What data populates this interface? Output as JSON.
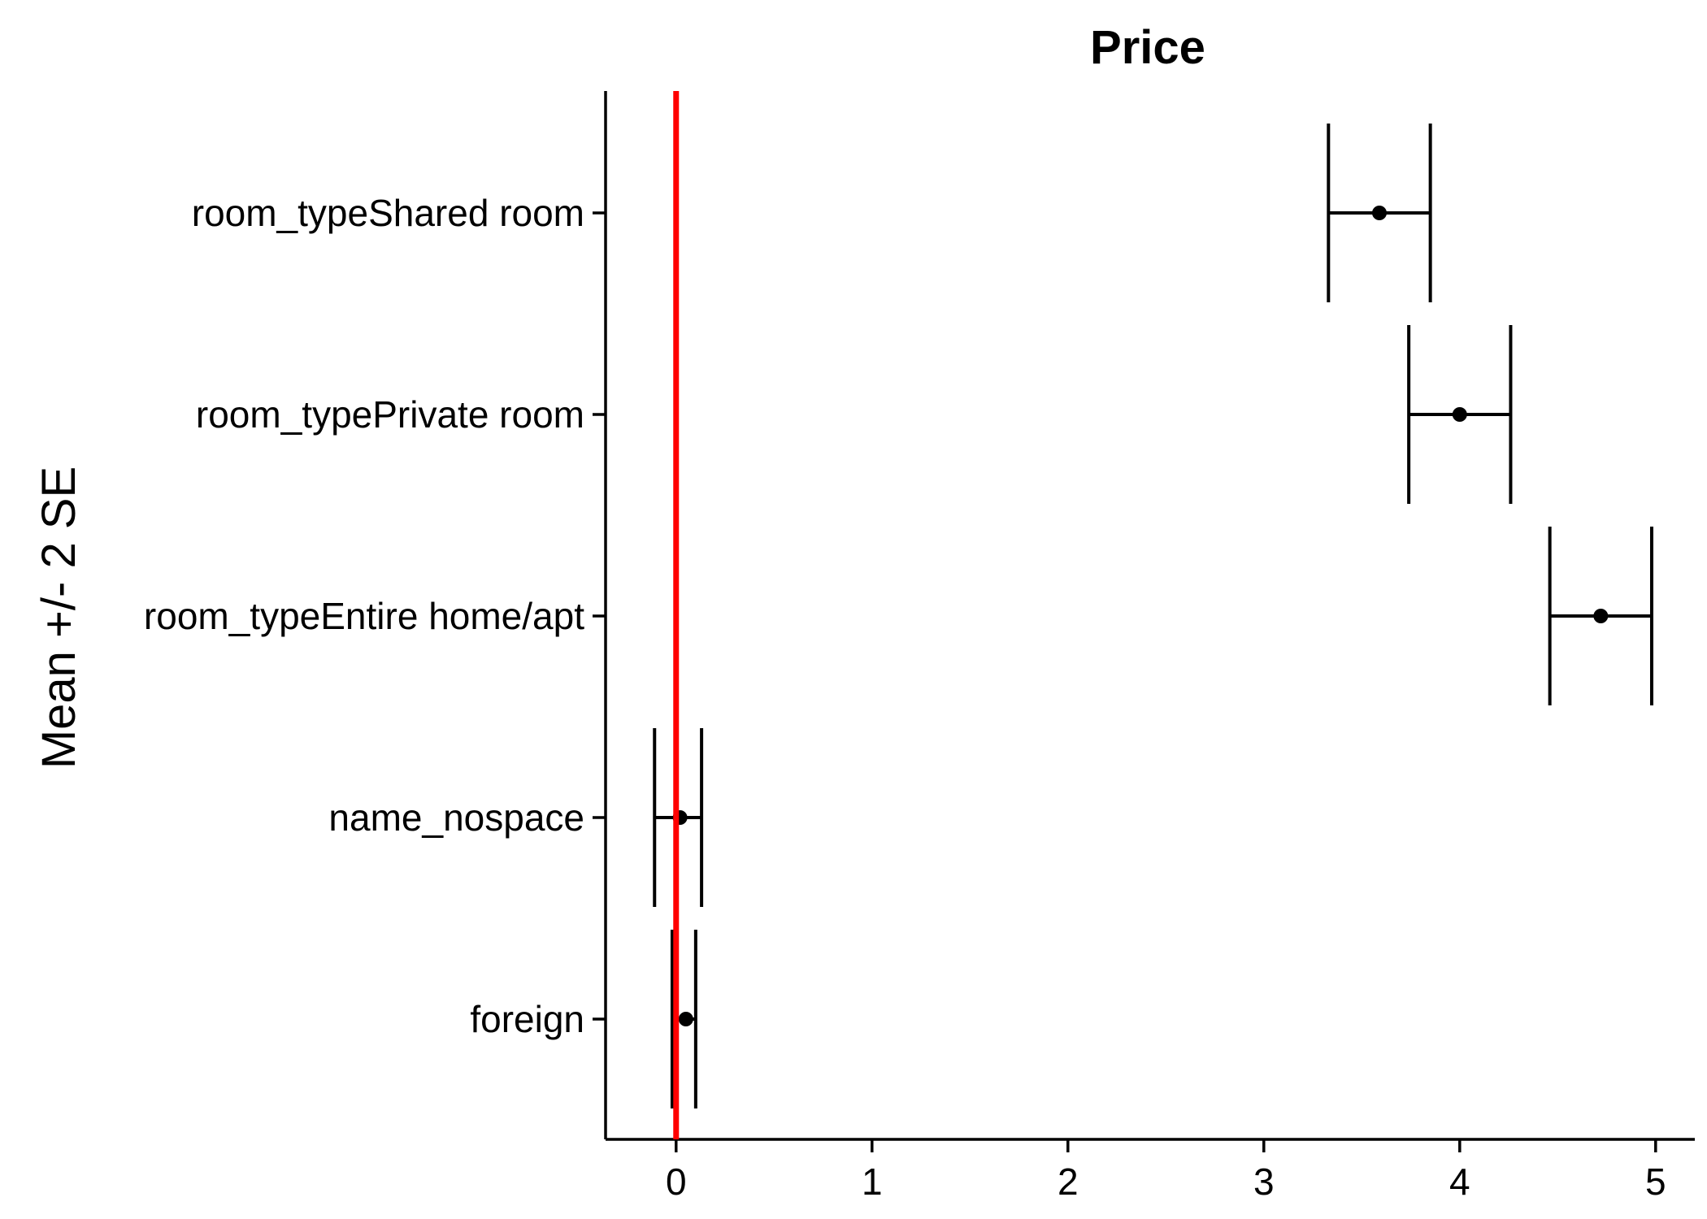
{
  "chart_data": {
    "type": "errorbar",
    "title": "Price",
    "xlabel": "",
    "ylabel": "Mean +/- 2 SE",
    "xlim": [
      -0.36,
      5.2
    ],
    "xticks": [
      0,
      1,
      2,
      3,
      4,
      5
    ],
    "reference_line": {
      "x": 0,
      "color": "#ff0000"
    },
    "categories": [
      "room_typeShared room",
      "room_typePrivate room",
      "room_typeEntire home/apt",
      "name_nospace",
      "foreign"
    ],
    "points": [
      {
        "label": "room_typeShared room",
        "mean": 3.59,
        "lower": 3.33,
        "upper": 3.85
      },
      {
        "label": "room_typePrivate room",
        "mean": 4.0,
        "lower": 3.74,
        "upper": 4.26
      },
      {
        "label": "room_typeEntire home/apt",
        "mean": 4.72,
        "lower": 4.46,
        "upper": 4.98
      },
      {
        "label": "name_nospace",
        "mean": 0.02,
        "lower": -0.11,
        "upper": 0.13
      },
      {
        "label": "foreign",
        "mean": 0.05,
        "lower": -0.02,
        "upper": 0.1
      }
    ],
    "grid": false,
    "legend": "none"
  }
}
